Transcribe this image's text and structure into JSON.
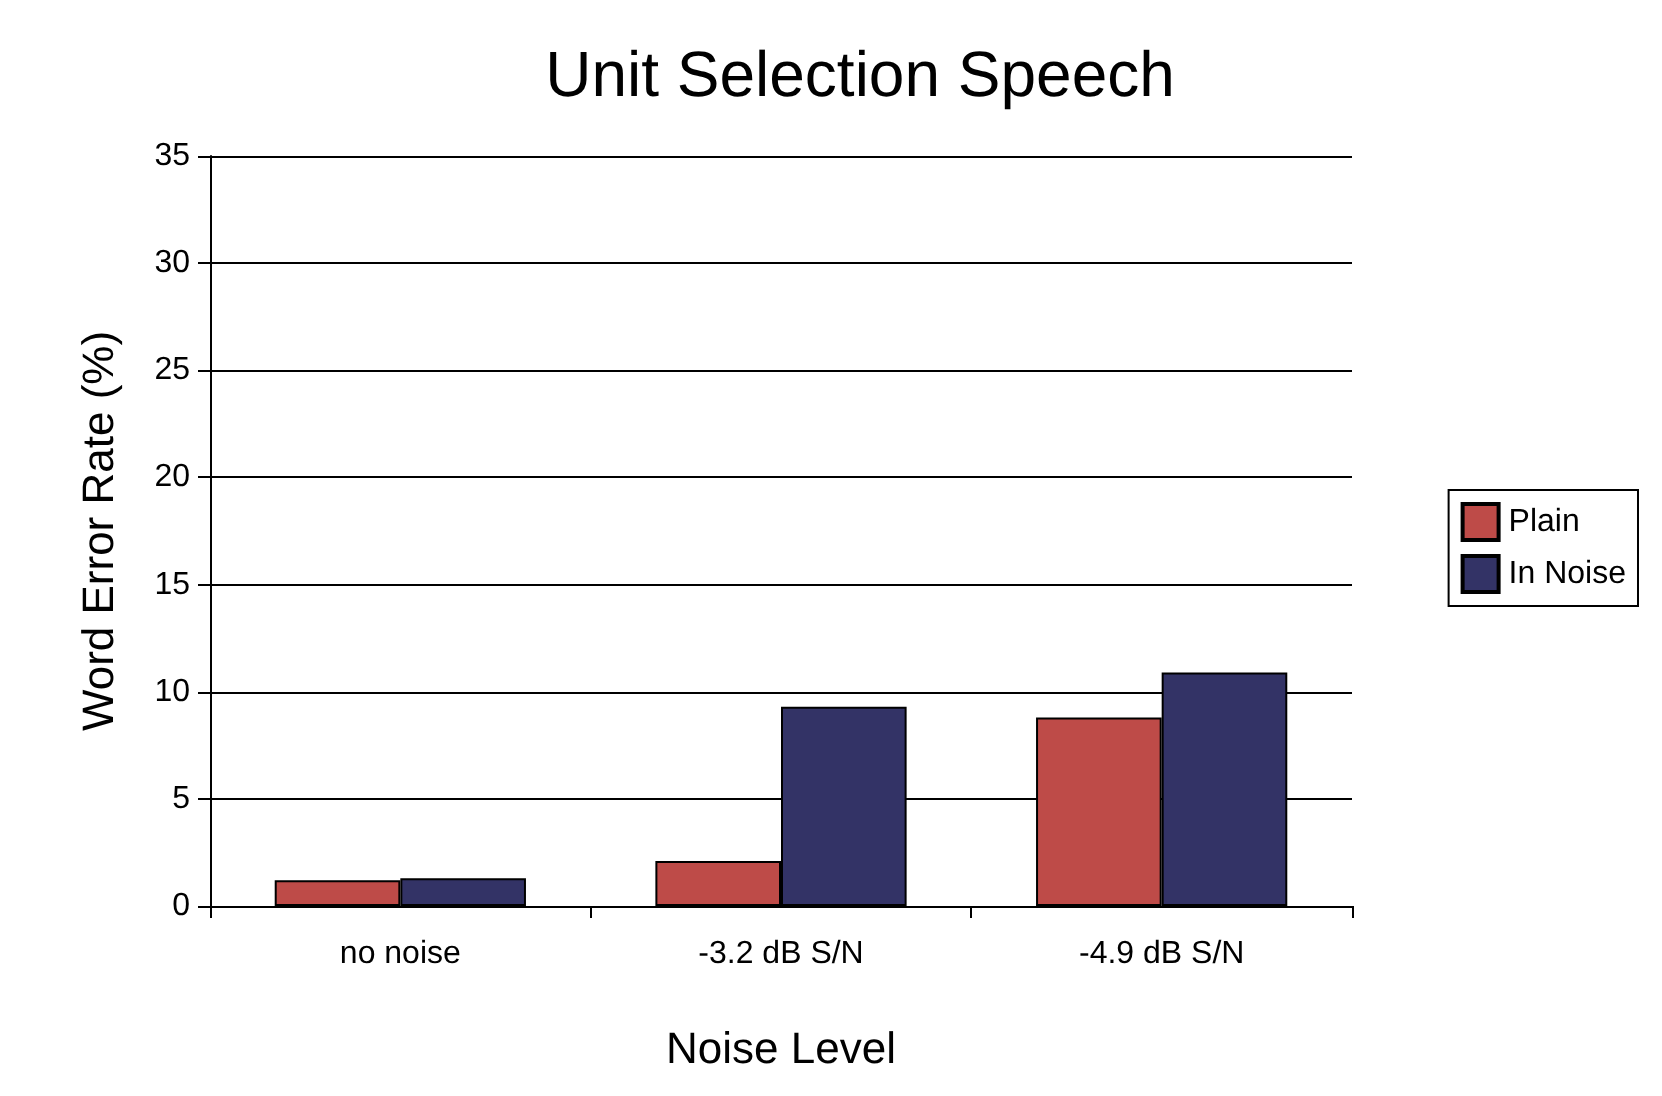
{
  "chart_data": {
    "type": "bar",
    "title": "Unit Selection Speech",
    "xlabel": "Noise Level",
    "ylabel": "Word Error Rate (%)",
    "categories": [
      "no noise",
      "-3.2 dB S/N",
      "-4.9 dB S/N"
    ],
    "series": [
      {
        "name": "Plain",
        "color": "#be4b48",
        "values": [
          1.2,
          2.1,
          8.8
        ]
      },
      {
        "name": "In Noise",
        "color": "#333366",
        "values": [
          1.3,
          9.3,
          10.9
        ]
      }
    ],
    "ylim": [
      0,
      35
    ],
    "yticks": [
      0,
      5,
      10,
      15,
      20,
      25,
      30,
      35
    ],
    "grid": "y",
    "legend": "right"
  }
}
